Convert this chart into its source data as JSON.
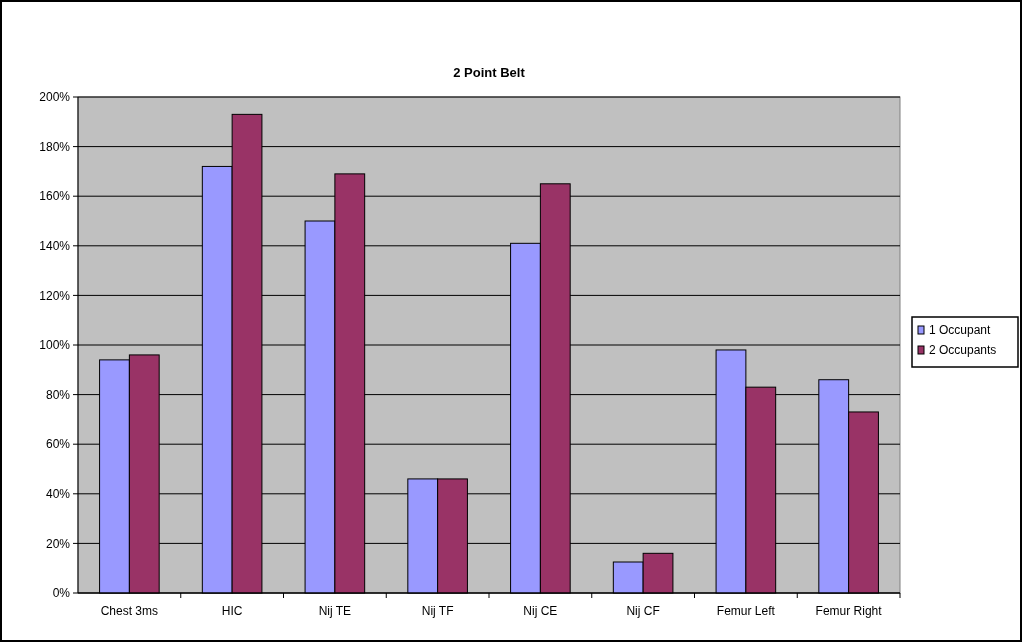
{
  "chart_data": {
    "type": "bar",
    "title": "2 Point Belt",
    "categories": [
      "Chest 3ms",
      "HIC",
      "Nij TE",
      "Nij TF",
      "Nij CE",
      "Nij CF",
      "Femur Left",
      "Femur Right"
    ],
    "series": [
      {
        "name": "1 Occupant",
        "color": "#9999ff",
        "values": [
          94,
          172,
          150,
          46,
          141,
          12.5,
          98,
          86
        ]
      },
      {
        "name": "2 Occupants",
        "color": "#993366",
        "values": [
          96,
          193,
          169,
          46,
          165,
          16,
          83,
          73
        ]
      }
    ],
    "ylim": [
      0,
      200
    ],
    "yticks": [
      {
        "value": 0,
        "label": "0%"
      },
      {
        "value": 20,
        "label": "20%"
      },
      {
        "value": 40,
        "label": "40%"
      },
      {
        "value": 60,
        "label": "60%"
      },
      {
        "value": 80,
        "label": "80%"
      },
      {
        "value": 100,
        "label": "100%"
      },
      {
        "value": 120,
        "label": "120%"
      },
      {
        "value": 140,
        "label": "140%"
      },
      {
        "value": 160,
        "label": "160%"
      },
      {
        "value": 180,
        "label": "180%"
      },
      {
        "value": 200,
        "label": "200%"
      }
    ],
    "grid": "y",
    "legend": "right"
  }
}
